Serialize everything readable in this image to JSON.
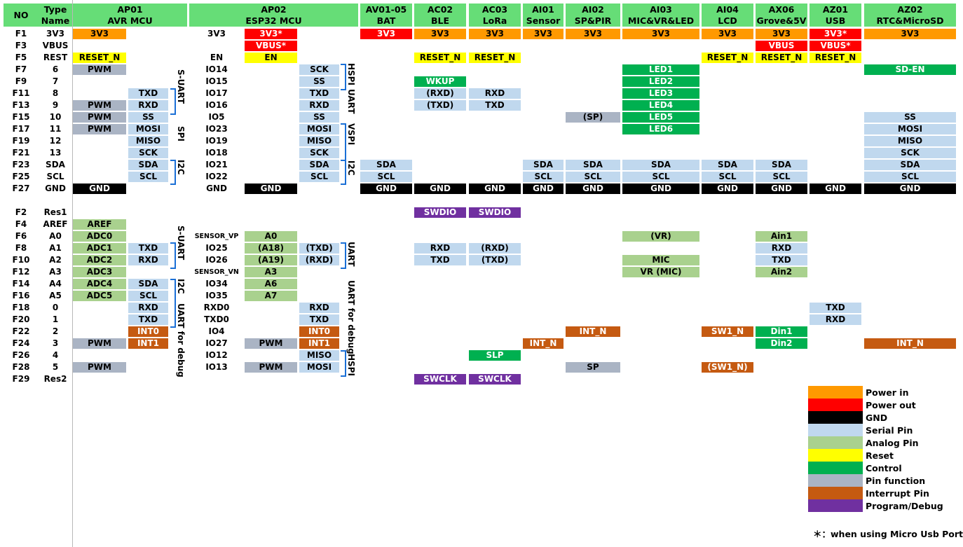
{
  "colors": {
    "power_in": "#ff9900",
    "power_out": "#ff0000",
    "gnd": "#000000",
    "serial": "#c0d8ee",
    "analog": "#a9d18e",
    "reset": "#ffff00",
    "control": "#00b050",
    "func": "#aab4c4",
    "interrupt": "#c55a11",
    "debug": "#7030a0",
    "header": "#66dd77"
  },
  "headers": {
    "no": "NO",
    "type_name": "Type\nName",
    "ap01": "AP01\nAVR MCU",
    "ap02": "AP02\nESP32 MCU",
    "av01": "AV01-05\nBAT",
    "ac02": "AC02\nBLE",
    "ac03": "AC03\nLoRa",
    "ai01": "AI01\nSensor",
    "ai02": "AI02\nSP&PIR",
    "ai03": "AI03\nMIC&VR&LED",
    "ai04": "AI04\nLCD",
    "ax06": "AX06\nGrove&5V",
    "az01": "AZ01\nUSB",
    "az02": "AZ02\nRTC&MicroSD"
  },
  "rows_top": [
    {
      "no": "F1",
      "name": "3V3",
      "esp": "3V3"
    },
    {
      "no": "F3",
      "name": "VBUS",
      "esp": ""
    },
    {
      "no": "F5",
      "name": "REST",
      "esp": "EN"
    },
    {
      "no": "F7",
      "name": "6",
      "esp": "IO14"
    },
    {
      "no": "F9",
      "name": "7",
      "esp": "IO15"
    },
    {
      "no": "F11",
      "name": "8",
      "esp": "IO17"
    },
    {
      "no": "F13",
      "name": "9",
      "esp": "IO16"
    },
    {
      "no": "F15",
      "name": "10",
      "esp": "IO5"
    },
    {
      "no": "F17",
      "name": "11",
      "esp": "IO23"
    },
    {
      "no": "F19",
      "name": "12",
      "esp": "IO19"
    },
    {
      "no": "F21",
      "name": "13",
      "esp": "IO18"
    },
    {
      "no": "F23",
      "name": "SDA",
      "esp": "IO21"
    },
    {
      "no": "F25",
      "name": "SCL",
      "esp": "IO22"
    },
    {
      "no": "F27",
      "name": "GND",
      "esp": "GND"
    }
  ],
  "rows_bottom": [
    {
      "no": "F2",
      "name": "Res1",
      "esp": ""
    },
    {
      "no": "F4",
      "name": "AREF",
      "esp": ""
    },
    {
      "no": "F6",
      "name": "A0",
      "esp": "SENSOR_VP"
    },
    {
      "no": "F8",
      "name": "A1",
      "esp": "IO25"
    },
    {
      "no": "F10",
      "name": "A2",
      "esp": "IO26"
    },
    {
      "no": "F12",
      "name": "A3",
      "esp": "SENSOR_VN"
    },
    {
      "no": "F14",
      "name": "A4",
      "esp": "IO34"
    },
    {
      "no": "F16",
      "name": "A5",
      "esp": "IO35"
    },
    {
      "no": "F18",
      "name": "0",
      "esp": "RXD0"
    },
    {
      "no": "F20",
      "name": "1",
      "esp": "TXD0"
    },
    {
      "no": "F22",
      "name": "2",
      "esp": "IO4"
    },
    {
      "no": "F24",
      "name": "3",
      "esp": "IO27"
    },
    {
      "no": "F26",
      "name": "4",
      "esp": "IO12"
    },
    {
      "no": "F28",
      "name": "5",
      "esp": "IO13"
    },
    {
      "no": "F29",
      "name": "Res2",
      "esp": ""
    }
  ],
  "cells_top": [
    {
      "r": 0,
      "c": "avr1",
      "t": "3V3",
      "k": "power_in"
    },
    {
      "r": 0,
      "c": "esp1",
      "t": "3V3*",
      "k": "power_out"
    },
    {
      "r": 0,
      "c": "bat",
      "t": "3V3",
      "k": "power_out"
    },
    {
      "r": 0,
      "c": "ble",
      "t": "3V3",
      "k": "power_in"
    },
    {
      "r": 0,
      "c": "lora",
      "t": "3V3",
      "k": "power_in"
    },
    {
      "r": 0,
      "c": "sensor",
      "t": "3V3",
      "k": "power_in"
    },
    {
      "r": 0,
      "c": "sppir",
      "t": "3V3",
      "k": "power_in"
    },
    {
      "r": 0,
      "c": "mic",
      "t": "3V3",
      "k": "power_in"
    },
    {
      "r": 0,
      "c": "lcd",
      "t": "3V3",
      "k": "power_in"
    },
    {
      "r": 0,
      "c": "grove",
      "t": "3V3",
      "k": "power_in"
    },
    {
      "r": 0,
      "c": "usb",
      "t": "3V3*",
      "k": "power_out"
    },
    {
      "r": 0,
      "c": "rtc",
      "t": "3V3",
      "k": "power_in"
    },
    {
      "r": 1,
      "c": "esp1",
      "t": "VBUS*",
      "k": "power_out"
    },
    {
      "r": 1,
      "c": "grove",
      "t": "VBUS",
      "k": "power_out"
    },
    {
      "r": 1,
      "c": "usb",
      "t": "VBUS*",
      "k": "power_out"
    },
    {
      "r": 2,
      "c": "avr1",
      "t": "RESET_N",
      "k": "reset"
    },
    {
      "r": 2,
      "c": "esp1",
      "t": "EN",
      "k": "reset"
    },
    {
      "r": 2,
      "c": "ble",
      "t": "RESET_N",
      "k": "reset"
    },
    {
      "r": 2,
      "c": "lora",
      "t": "RESET_N",
      "k": "reset"
    },
    {
      "r": 2,
      "c": "lcd",
      "t": "RESET_N",
      "k": "reset"
    },
    {
      "r": 2,
      "c": "grove",
      "t": "RESET_N",
      "k": "reset"
    },
    {
      "r": 2,
      "c": "usb",
      "t": "RESET_N",
      "k": "reset"
    },
    {
      "r": 3,
      "c": "avr1",
      "t": "PWM",
      "k": "func"
    },
    {
      "r": 3,
      "c": "esp2",
      "t": "SCK",
      "k": "serial"
    },
    {
      "r": 3,
      "c": "mic",
      "t": "LED1",
      "k": "control"
    },
    {
      "r": 3,
      "c": "rtc",
      "t": "SD-EN",
      "k": "control"
    },
    {
      "r": 4,
      "c": "esp2",
      "t": "SS",
      "k": "serial"
    },
    {
      "r": 4,
      "c": "ble",
      "t": "WKUP",
      "k": "control"
    },
    {
      "r": 4,
      "c": "mic",
      "t": "LED2",
      "k": "control"
    },
    {
      "r": 5,
      "c": "avr2",
      "t": "TXD",
      "k": "serial"
    },
    {
      "r": 5,
      "c": "esp2",
      "t": "TXD",
      "k": "serial"
    },
    {
      "r": 5,
      "c": "ble",
      "t": "(RXD)",
      "k": "serial"
    },
    {
      "r": 5,
      "c": "lora",
      "t": "RXD",
      "k": "serial"
    },
    {
      "r": 5,
      "c": "mic",
      "t": "LED3",
      "k": "control"
    },
    {
      "r": 6,
      "c": "avr1",
      "t": "PWM",
      "k": "func"
    },
    {
      "r": 6,
      "c": "avr2",
      "t": "RXD",
      "k": "serial"
    },
    {
      "r": 6,
      "c": "esp2",
      "t": "RXD",
      "k": "serial"
    },
    {
      "r": 6,
      "c": "ble",
      "t": "(TXD)",
      "k": "serial"
    },
    {
      "r": 6,
      "c": "lora",
      "t": "TXD",
      "k": "serial"
    },
    {
      "r": 6,
      "c": "mic",
      "t": "LED4",
      "k": "control"
    },
    {
      "r": 7,
      "c": "avr1",
      "t": "PWM",
      "k": "func"
    },
    {
      "r": 7,
      "c": "avr2",
      "t": "SS",
      "k": "serial"
    },
    {
      "r": 7,
      "c": "esp2",
      "t": "SS",
      "k": "serial"
    },
    {
      "r": 7,
      "c": "sppir",
      "t": "(SP)",
      "k": "func"
    },
    {
      "r": 7,
      "c": "mic",
      "t": "LED5",
      "k": "control"
    },
    {
      "r": 7,
      "c": "rtc",
      "t": "SS",
      "k": "serial"
    },
    {
      "r": 8,
      "c": "avr1",
      "t": "PWM",
      "k": "func"
    },
    {
      "r": 8,
      "c": "avr2",
      "t": "MOSI",
      "k": "serial"
    },
    {
      "r": 8,
      "c": "esp2",
      "t": "MOSI",
      "k": "serial"
    },
    {
      "r": 8,
      "c": "mic",
      "t": "LED6",
      "k": "control"
    },
    {
      "r": 8,
      "c": "rtc",
      "t": "MOSI",
      "k": "serial"
    },
    {
      "r": 9,
      "c": "avr2",
      "t": "MISO",
      "k": "serial"
    },
    {
      "r": 9,
      "c": "esp2",
      "t": "MISO",
      "k": "serial"
    },
    {
      "r": 9,
      "c": "rtc",
      "t": "MISO",
      "k": "serial"
    },
    {
      "r": 10,
      "c": "avr2",
      "t": "SCK",
      "k": "serial"
    },
    {
      "r": 10,
      "c": "esp2",
      "t": "SCK",
      "k": "serial"
    },
    {
      "r": 10,
      "c": "rtc",
      "t": "SCK",
      "k": "serial"
    },
    {
      "r": 11,
      "c": "avr2",
      "t": "SDA",
      "k": "serial"
    },
    {
      "r": 11,
      "c": "esp2",
      "t": "SDA",
      "k": "serial"
    },
    {
      "r": 11,
      "c": "bat",
      "t": "SDA",
      "k": "serial"
    },
    {
      "r": 11,
      "c": "sensor",
      "t": "SDA",
      "k": "serial"
    },
    {
      "r": 11,
      "c": "sppir",
      "t": "SDA",
      "k": "serial"
    },
    {
      "r": 11,
      "c": "mic",
      "t": "SDA",
      "k": "serial"
    },
    {
      "r": 11,
      "c": "lcd",
      "t": "SDA",
      "k": "serial"
    },
    {
      "r": 11,
      "c": "grove",
      "t": "SDA",
      "k": "serial"
    },
    {
      "r": 11,
      "c": "rtc",
      "t": "SDA",
      "k": "serial"
    },
    {
      "r": 12,
      "c": "avr2",
      "t": "SCL",
      "k": "serial"
    },
    {
      "r": 12,
      "c": "esp2",
      "t": "SCL",
      "k": "serial"
    },
    {
      "r": 12,
      "c": "bat",
      "t": "SCL",
      "k": "serial"
    },
    {
      "r": 12,
      "c": "sensor",
      "t": "SCL",
      "k": "serial"
    },
    {
      "r": 12,
      "c": "sppir",
      "t": "SCL",
      "k": "serial"
    },
    {
      "r": 12,
      "c": "mic",
      "t": "SCL",
      "k": "serial"
    },
    {
      "r": 12,
      "c": "lcd",
      "t": "SCL",
      "k": "serial"
    },
    {
      "r": 12,
      "c": "grove",
      "t": "SCL",
      "k": "serial"
    },
    {
      "r": 12,
      "c": "rtc",
      "t": "SCL",
      "k": "serial"
    },
    {
      "r": 13,
      "c": "avr1",
      "t": "GND",
      "k": "gnd"
    },
    {
      "r": 13,
      "c": "esp1",
      "t": "GND",
      "k": "gnd"
    },
    {
      "r": 13,
      "c": "bat",
      "t": "GND",
      "k": "gnd"
    },
    {
      "r": 13,
      "c": "ble",
      "t": "GND",
      "k": "gnd"
    },
    {
      "r": 13,
      "c": "lora",
      "t": "GND",
      "k": "gnd"
    },
    {
      "r": 13,
      "c": "sensor",
      "t": "GND",
      "k": "gnd"
    },
    {
      "r": 13,
      "c": "sppir",
      "t": "GND",
      "k": "gnd"
    },
    {
      "r": 13,
      "c": "mic",
      "t": "GND",
      "k": "gnd"
    },
    {
      "r": 13,
      "c": "lcd",
      "t": "GND",
      "k": "gnd"
    },
    {
      "r": 13,
      "c": "grove",
      "t": "GND",
      "k": "gnd"
    },
    {
      "r": 13,
      "c": "usb",
      "t": "GND",
      "k": "gnd"
    },
    {
      "r": 13,
      "c": "rtc",
      "t": "GND",
      "k": "gnd"
    }
  ],
  "cells_bottom": [
    {
      "r": 0,
      "c": "ble",
      "t": "SWDIO",
      "k": "debug"
    },
    {
      "r": 0,
      "c": "lora",
      "t": "SWDIO",
      "k": "debug"
    },
    {
      "r": 1,
      "c": "avr1",
      "t": "AREF",
      "k": "analog"
    },
    {
      "r": 2,
      "c": "avr1",
      "t": "ADC0",
      "k": "analog"
    },
    {
      "r": 2,
      "c": "esp1",
      "t": "A0",
      "k": "analog"
    },
    {
      "r": 2,
      "c": "mic",
      "t": "(VR)",
      "k": "analog"
    },
    {
      "r": 2,
      "c": "grove",
      "t": "Ain1",
      "k": "analog"
    },
    {
      "r": 3,
      "c": "avr1",
      "t": "ADC1",
      "k": "analog"
    },
    {
      "r": 3,
      "c": "avr2",
      "t": "TXD",
      "k": "serial"
    },
    {
      "r": 3,
      "c": "esp1",
      "t": "(A18)",
      "k": "analog"
    },
    {
      "r": 3,
      "c": "esp2",
      "t": "(TXD)",
      "k": "serial"
    },
    {
      "r": 3,
      "c": "ble",
      "t": "RXD",
      "k": "serial"
    },
    {
      "r": 3,
      "c": "lora",
      "t": "(RXD)",
      "k": "serial"
    },
    {
      "r": 3,
      "c": "grove",
      "t": "RXD",
      "k": "serial"
    },
    {
      "r": 4,
      "c": "avr1",
      "t": "ADC2",
      "k": "analog"
    },
    {
      "r": 4,
      "c": "avr2",
      "t": "RXD",
      "k": "serial"
    },
    {
      "r": 4,
      "c": "esp1",
      "t": "(A19)",
      "k": "analog"
    },
    {
      "r": 4,
      "c": "esp2",
      "t": "(RXD)",
      "k": "serial"
    },
    {
      "r": 4,
      "c": "ble",
      "t": "TXD",
      "k": "serial"
    },
    {
      "r": 4,
      "c": "lora",
      "t": "(TXD)",
      "k": "serial"
    },
    {
      "r": 4,
      "c": "mic",
      "t": "MIC",
      "k": "analog"
    },
    {
      "r": 4,
      "c": "grove",
      "t": "TXD",
      "k": "serial"
    },
    {
      "r": 5,
      "c": "avr1",
      "t": "ADC3",
      "k": "analog"
    },
    {
      "r": 5,
      "c": "esp1",
      "t": "A3",
      "k": "analog"
    },
    {
      "r": 5,
      "c": "mic",
      "t": "VR (MIC)",
      "k": "analog"
    },
    {
      "r": 5,
      "c": "grove",
      "t": "Ain2",
      "k": "analog"
    },
    {
      "r": 6,
      "c": "avr1",
      "t": "ADC4",
      "k": "analog"
    },
    {
      "r": 6,
      "c": "avr2",
      "t": "SDA",
      "k": "serial"
    },
    {
      "r": 6,
      "c": "esp1",
      "t": "A6",
      "k": "analog"
    },
    {
      "r": 7,
      "c": "avr1",
      "t": "ADC5",
      "k": "analog"
    },
    {
      "r": 7,
      "c": "avr2",
      "t": "SCL",
      "k": "serial"
    },
    {
      "r": 7,
      "c": "esp1",
      "t": "A7",
      "k": "analog"
    },
    {
      "r": 8,
      "c": "avr2",
      "t": "RXD",
      "k": "serial"
    },
    {
      "r": 8,
      "c": "esp2",
      "t": "RXD",
      "k": "serial"
    },
    {
      "r": 8,
      "c": "usb",
      "t": "TXD",
      "k": "serial"
    },
    {
      "r": 9,
      "c": "avr2",
      "t": "TXD",
      "k": "serial"
    },
    {
      "r": 9,
      "c": "esp2",
      "t": "TXD",
      "k": "serial"
    },
    {
      "r": 9,
      "c": "usb",
      "t": "RXD",
      "k": "serial"
    },
    {
      "r": 10,
      "c": "avr2",
      "t": "INT0",
      "k": "interrupt"
    },
    {
      "r": 10,
      "c": "esp2",
      "t": "INT0",
      "k": "interrupt"
    },
    {
      "r": 10,
      "c": "sppir",
      "t": "INT_N",
      "k": "interrupt"
    },
    {
      "r": 10,
      "c": "lcd",
      "t": "SW1_N",
      "k": "interrupt"
    },
    {
      "r": 10,
      "c": "grove",
      "t": "Din1",
      "k": "control"
    },
    {
      "r": 11,
      "c": "avr1",
      "t": "PWM",
      "k": "func"
    },
    {
      "r": 11,
      "c": "avr2",
      "t": "INT1",
      "k": "interrupt"
    },
    {
      "r": 11,
      "c": "esp1",
      "t": "PWM",
      "k": "func"
    },
    {
      "r": 11,
      "c": "esp2",
      "t": "INT1",
      "k": "interrupt"
    },
    {
      "r": 11,
      "c": "sensor",
      "t": "INT_N",
      "k": "interrupt"
    },
    {
      "r": 11,
      "c": "grove",
      "t": "Din2",
      "k": "control"
    },
    {
      "r": 11,
      "c": "rtc",
      "t": "INT_N",
      "k": "interrupt"
    },
    {
      "r": 12,
      "c": "esp2",
      "t": "MISO",
      "k": "serial"
    },
    {
      "r": 12,
      "c": "lora",
      "t": "SLP",
      "k": "control"
    },
    {
      "r": 13,
      "c": "avr1",
      "t": "PWM",
      "k": "func"
    },
    {
      "r": 13,
      "c": "esp1",
      "t": "PWM",
      "k": "func"
    },
    {
      "r": 13,
      "c": "esp2",
      "t": "MOSI",
      "k": "serial"
    },
    {
      "r": 13,
      "c": "sppir",
      "t": "SP",
      "k": "func"
    },
    {
      "r": 13,
      "c": "lcd",
      "t": "(SW1_N)",
      "k": "interrupt"
    },
    {
      "r": 14,
      "c": "ble",
      "t": "SWCLK",
      "k": "debug"
    },
    {
      "r": 14,
      "c": "lora",
      "t": "SWCLK",
      "k": "debug"
    }
  ],
  "side_labels": [
    {
      "t": "S-UART",
      "x": 265,
      "y": 99
    },
    {
      "t": "SPI",
      "x": 265,
      "y": 180
    },
    {
      "t": "I2C",
      "x": 265,
      "y": 228
    },
    {
      "t": "HSPI",
      "x": 508,
      "y": 90
    },
    {
      "t": "UART",
      "x": 508,
      "y": 127
    },
    {
      "t": "VSPI",
      "x": 508,
      "y": 176
    },
    {
      "t": "I2C",
      "x": 508,
      "y": 229
    },
    {
      "t": "S-UART",
      "x": 265,
      "y": 322
    },
    {
      "t": "I2C",
      "x": 265,
      "y": 398
    },
    {
      "t": "UART  for debug",
      "x": 265,
      "y": 433
    },
    {
      "t": "UART",
      "x": 508,
      "y": 345
    },
    {
      "t": "UART  for debug",
      "x": 508,
      "y": 400
    },
    {
      "t": "HSPI",
      "x": 508,
      "y": 505
    }
  ],
  "legend": [
    {
      "k": "power_in",
      "t": "Power in"
    },
    {
      "k": "power_out",
      "t": "Power out"
    },
    {
      "k": "gnd",
      "t": "GND"
    },
    {
      "k": "serial",
      "t": "Serial Pin"
    },
    {
      "k": "analog",
      "t": "Analog Pin"
    },
    {
      "k": "reset",
      "t": "Reset"
    },
    {
      "k": "control",
      "t": "Control"
    },
    {
      "k": "func",
      "t": "Pin function"
    },
    {
      "k": "interrupt",
      "t": "Interrupt Pin"
    },
    {
      "k": "debug",
      "t": "Program/Debug"
    }
  ],
  "note": "＊：when using Micro Usb Port"
}
